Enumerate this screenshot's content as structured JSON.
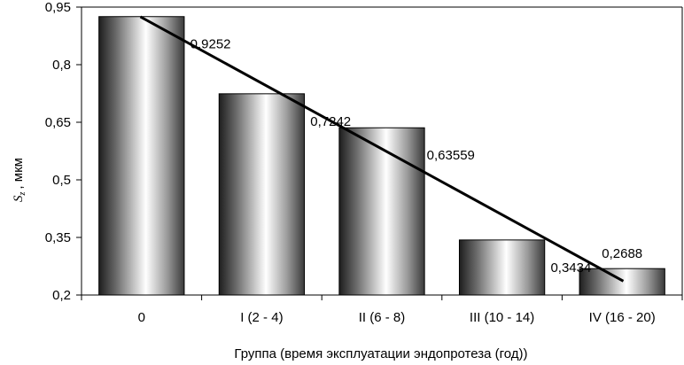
{
  "chart_data": {
    "type": "bar",
    "categories": [
      "0",
      "I (2 - 4)",
      "II (6 - 8)",
      "III (10 - 14)",
      "IV (16 - 20)"
    ],
    "values": [
      0.9252,
      0.7242,
      0.63559,
      0.3434,
      0.2688
    ],
    "data_labels": [
      "0,9252",
      "0,7242",
      "0,63559",
      "0,3434",
      "0,2688"
    ],
    "ylim": [
      0.2,
      0.95
    ],
    "yticks": [
      0.2,
      0.35,
      0.5,
      0.65,
      0.8,
      0.95
    ],
    "ytick_labels": [
      "0,2",
      "0,35",
      "0,5",
      "0,65",
      "0,8",
      "0,95"
    ],
    "xlabel": "Группа (время эксплуатации эндопротеза (год))",
    "ylabel": {
      "symbol": "S",
      "subscript": "z",
      "unit": ", мкм"
    },
    "trendline": {
      "type": "linear",
      "start": {
        "category": "0",
        "value": 0.923
      },
      "end": {
        "category": "IV (16 - 20)",
        "value": 0.238
      },
      "color": "#000000"
    },
    "grid": false,
    "legend": "none",
    "bar_style": "cylinder-gradient",
    "colors": {
      "bar_dark": "#1e1e1e",
      "bar_light": "#ffffff",
      "bar_edge": "#000000",
      "trendline": "#000000"
    }
  }
}
